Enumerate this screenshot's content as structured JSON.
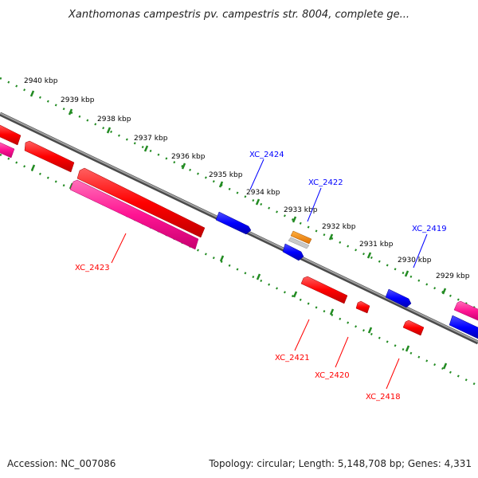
{
  "title": "Xanthomonas campestris pv. campestris str. 8004, complete ge...",
  "footer": {
    "accession": "Accession: NC_007086",
    "summary": "Topology: circular; Length: 5,148,708 bp; Genes: 4,331"
  },
  "ticks": [
    "2940 kbp",
    "2939 kbp",
    "2938 kbp",
    "2937 kbp",
    "2936 kbp",
    "2935 kbp",
    "2934 kbp",
    "2933 kbp",
    "2932 kbp",
    "2931 kbp",
    "2930 kbp",
    "2929 kbp"
  ],
  "gene_labels": {
    "xc2424": "XC_2424",
    "xc2422": "XC_2422",
    "xc2419": "XC_2419",
    "xc2423": "XC_2423",
    "xc2421": "XC_2421",
    "xc2420": "XC_2420",
    "xc2418": "XC_2418"
  },
  "colors": {
    "forward_strand": "#0000ff",
    "reverse_strand": "#ff0000",
    "reverse_pink": "#ff1493",
    "orange": "#ff8c00",
    "backbone": "#808080",
    "tick_dots": "#228b22"
  }
}
